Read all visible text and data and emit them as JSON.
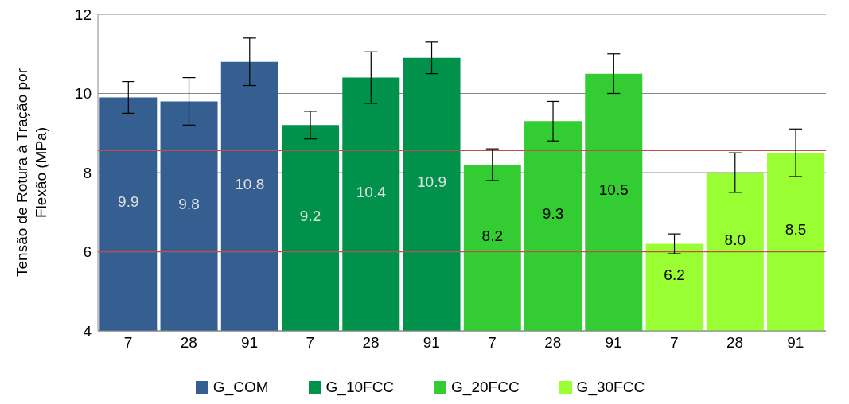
{
  "chart_data": {
    "type": "bar",
    "ylabel": "Tensão de Rotura à Tração por Flexão (MPa)",
    "categories": [
      "7",
      "28",
      "91",
      "7",
      "28",
      "91",
      "7",
      "28",
      "91",
      "7",
      "28",
      "91"
    ],
    "series": [
      {
        "name": "G_COM",
        "color": "#365f91",
        "values": [
          9.9,
          9.8,
          10.8,
          null,
          null,
          null,
          null,
          null,
          null,
          null,
          null,
          null
        ],
        "errors": [
          0.4,
          0.6,
          0.6,
          null,
          null,
          null,
          null,
          null,
          null,
          null,
          null,
          null
        ],
        "value_labels": [
          "9.9",
          "9.8",
          "10.8",
          null,
          null,
          null,
          null,
          null,
          null,
          null,
          null,
          null
        ]
      },
      {
        "name": "G_10FCC",
        "color": "#00914b",
        "values": [
          null,
          null,
          null,
          9.2,
          10.4,
          10.9,
          null,
          null,
          null,
          null,
          null,
          null
        ],
        "errors": [
          null,
          null,
          null,
          0.35,
          0.65,
          0.4,
          null,
          null,
          null,
          null,
          null,
          null
        ],
        "value_labels": [
          null,
          null,
          null,
          "9.2",
          "10.4",
          "10.9",
          null,
          null,
          null,
          null,
          null,
          null
        ]
      },
      {
        "name": "G_20FCC",
        "color": "#33cc33",
        "values": [
          null,
          null,
          null,
          null,
          null,
          null,
          8.2,
          9.3,
          10.5,
          null,
          null,
          null
        ],
        "errors": [
          null,
          null,
          null,
          null,
          null,
          null,
          0.4,
          0.5,
          0.5,
          null,
          null,
          null
        ],
        "value_labels": [
          null,
          null,
          null,
          null,
          null,
          null,
          "8.2",
          "9.3",
          "10.5",
          null,
          null,
          null
        ]
      },
      {
        "name": "G_30FCC",
        "color": "#99ff33",
        "values": [
          null,
          null,
          null,
          null,
          null,
          null,
          null,
          null,
          null,
          6.2,
          8.0,
          8.5
        ],
        "errors": [
          null,
          null,
          null,
          null,
          null,
          null,
          null,
          null,
          null,
          0.25,
          0.5,
          0.6
        ],
        "value_labels": [
          null,
          null,
          null,
          null,
          null,
          null,
          null,
          null,
          null,
          "6.2",
          "8.0",
          "8.5"
        ]
      }
    ],
    "ylim": [
      4,
      12
    ],
    "yticks": [
      4,
      6,
      8,
      10,
      12
    ],
    "grid": "y",
    "legend": "bottom",
    "ref_lines": [
      {
        "axis": "y",
        "value": 6,
        "color": "#c0504d"
      },
      {
        "axis": "y",
        "value": 8.56,
        "color": "#c0504d"
      }
    ]
  }
}
